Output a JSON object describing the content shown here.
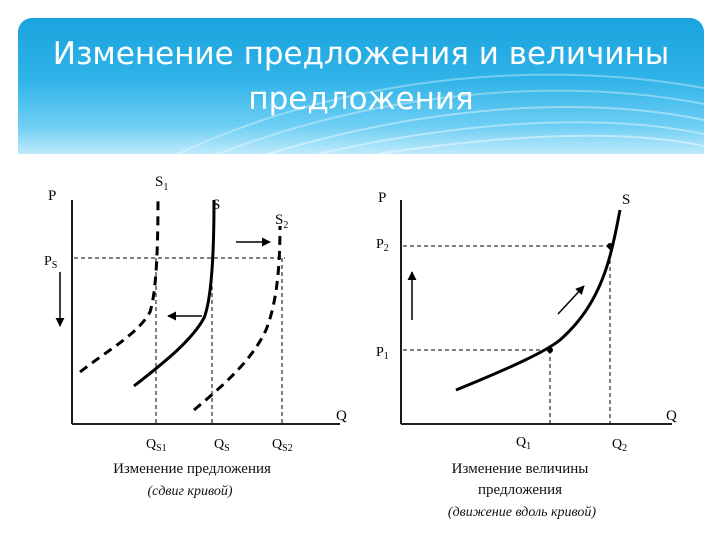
{
  "slide": {
    "title_line1": "Изменение предложения и величины",
    "title_line2": "предложения"
  },
  "left_graph": {
    "axis_y_label": "P",
    "axis_x_label": "Q",
    "price_label_main": "P",
    "price_label_sub": "S",
    "curve_s1_main": "S",
    "curve_s1_sub": "1",
    "curve_s_label": "S",
    "curve_s2_main": "S",
    "curve_s2_sub": "2",
    "tick_qs1_main": "Q",
    "tick_qs1_sub": "S1",
    "tick_qs_main": "Q",
    "tick_qs_sub": "S",
    "tick_qs2_main": "Q",
    "tick_qs2_sub": "S2",
    "caption_line1": "Изменение предложения",
    "caption_line2": "(сдвиг кривой)"
  },
  "right_graph": {
    "axis_y_label": "P",
    "axis_x_label": "Q",
    "curve_label": "S",
    "price_p2_main": "P",
    "price_p2_sub": "2",
    "price_p1_main": "P",
    "price_p1_sub": "1",
    "tick_q1_main": "Q",
    "tick_q1_sub": "1",
    "tick_q2_main": "Q",
    "tick_q2_sub": "2",
    "caption_line1": "Изменение величины",
    "caption_line2": "предложения",
    "caption_line3": "(движение вдоль кривой)"
  }
}
